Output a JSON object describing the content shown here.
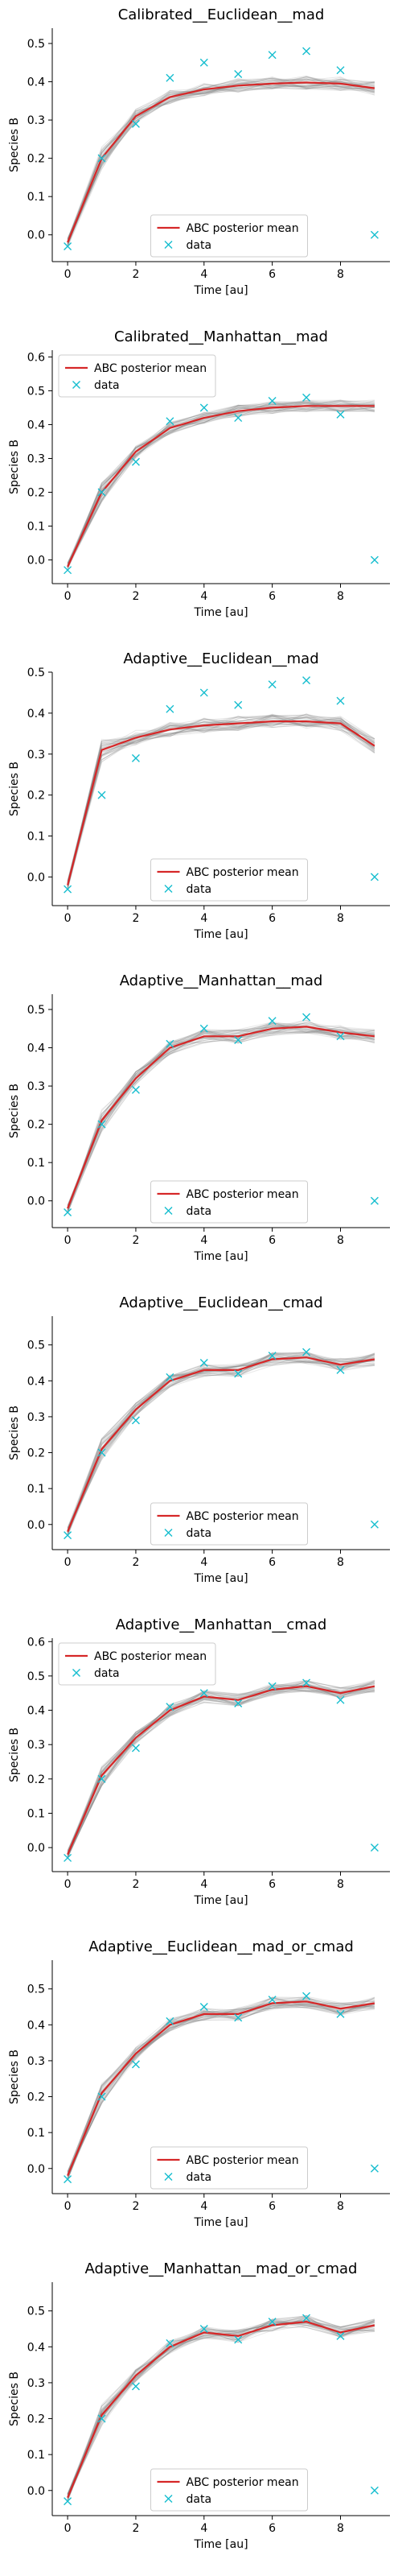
{
  "chart_data": [
    {
      "type": "line",
      "title": "Calibrated__Euclidean__mad",
      "xlabel": "Time [au]",
      "ylabel": "Species B",
      "xlim": [
        -0.45,
        9.45
      ],
      "ylim": [
        -0.07,
        0.54
      ],
      "xticks": [
        0,
        2,
        4,
        6,
        8
      ],
      "yticks": [
        0.0,
        0.1,
        0.2,
        0.3,
        0.4,
        0.5
      ],
      "legend_position": "lower-center",
      "series": [
        {
          "name": "ABC posterior mean",
          "color": "#d62728",
          "x": [
            0,
            1,
            2,
            3,
            4,
            5,
            6,
            7,
            8,
            9
          ],
          "y": [
            -0.02,
            0.2,
            0.31,
            0.36,
            0.38,
            0.39,
            0.395,
            0.398,
            0.395,
            0.383
          ]
        },
        {
          "name": "data",
          "color": "#17becf",
          "marker": "x",
          "x": [
            0,
            1,
            2,
            3,
            4,
            5,
            6,
            7,
            8,
            9
          ],
          "y": [
            -0.03,
            0.2,
            0.29,
            0.41,
            0.45,
            0.42,
            0.47,
            0.48,
            0.43,
            0.0
          ]
        }
      ]
    },
    {
      "type": "line",
      "title": "Calibrated__Manhattan__mad",
      "xlabel": "Time [au]",
      "ylabel": "Species B",
      "xlim": [
        -0.45,
        9.45
      ],
      "ylim": [
        -0.07,
        0.62
      ],
      "xticks": [
        0,
        2,
        4,
        6,
        8
      ],
      "yticks": [
        0.0,
        0.1,
        0.2,
        0.3,
        0.4,
        0.5,
        0.6
      ],
      "legend_position": "upper-left",
      "series": [
        {
          "name": "ABC posterior mean",
          "color": "#d62728",
          "x": [
            0,
            1,
            2,
            3,
            4,
            5,
            6,
            7,
            8,
            9
          ],
          "y": [
            -0.02,
            0.2,
            0.32,
            0.39,
            0.42,
            0.44,
            0.45,
            0.455,
            0.455,
            0.455
          ]
        },
        {
          "name": "data",
          "color": "#17becf",
          "marker": "x",
          "x": [
            0,
            1,
            2,
            3,
            4,
            5,
            6,
            7,
            8,
            9
          ],
          "y": [
            -0.03,
            0.2,
            0.29,
            0.41,
            0.45,
            0.42,
            0.47,
            0.48,
            0.43,
            0.0
          ]
        }
      ]
    },
    {
      "type": "line",
      "title": "Adaptive__Euclidean__mad",
      "xlabel": "Time [au]",
      "ylabel": "Species B",
      "xlim": [
        -0.45,
        9.45
      ],
      "ylim": [
        -0.07,
        0.5
      ],
      "xticks": [
        0,
        2,
        4,
        6,
        8
      ],
      "yticks": [
        0.0,
        0.1,
        0.2,
        0.3,
        0.4,
        0.5
      ],
      "legend_position": "lower-center",
      "series": [
        {
          "name": "ABC posterior mean",
          "color": "#d62728",
          "x": [
            0,
            1,
            2,
            3,
            4,
            5,
            6,
            7,
            8,
            9
          ],
          "y": [
            -0.02,
            0.31,
            0.34,
            0.36,
            0.37,
            0.375,
            0.38,
            0.38,
            0.375,
            0.32
          ]
        },
        {
          "name": "data",
          "color": "#17becf",
          "marker": "x",
          "x": [
            0,
            1,
            2,
            3,
            4,
            5,
            6,
            7,
            8,
            9
          ],
          "y": [
            -0.03,
            0.2,
            0.29,
            0.41,
            0.45,
            0.42,
            0.47,
            0.48,
            0.43,
            0.0
          ]
        }
      ]
    },
    {
      "type": "line",
      "title": "Adaptive__Manhattan__mad",
      "xlabel": "Time [au]",
      "ylabel": "Species B",
      "xlim": [
        -0.45,
        9.45
      ],
      "ylim": [
        -0.07,
        0.54
      ],
      "xticks": [
        0,
        2,
        4,
        6,
        8
      ],
      "yticks": [
        0.0,
        0.1,
        0.2,
        0.3,
        0.4,
        0.5
      ],
      "legend_position": "lower-center",
      "series": [
        {
          "name": "ABC posterior mean",
          "color": "#d62728",
          "x": [
            0,
            1,
            2,
            3,
            4,
            5,
            6,
            7,
            8,
            9
          ],
          "y": [
            -0.02,
            0.21,
            0.32,
            0.4,
            0.43,
            0.43,
            0.45,
            0.455,
            0.44,
            0.43
          ]
        },
        {
          "name": "data",
          "color": "#17becf",
          "marker": "x",
          "x": [
            0,
            1,
            2,
            3,
            4,
            5,
            6,
            7,
            8,
            9
          ],
          "y": [
            -0.03,
            0.2,
            0.29,
            0.41,
            0.45,
            0.42,
            0.47,
            0.48,
            0.43,
            0.0
          ]
        }
      ]
    },
    {
      "type": "line",
      "title": "Adaptive__Euclidean__cmad",
      "xlabel": "Time [au]",
      "ylabel": "Species B",
      "xlim": [
        -0.45,
        9.45
      ],
      "ylim": [
        -0.07,
        0.58
      ],
      "xticks": [
        0,
        2,
        4,
        6,
        8
      ],
      "yticks": [
        0.0,
        0.1,
        0.2,
        0.3,
        0.4,
        0.5
      ],
      "legend_position": "lower-center",
      "series": [
        {
          "name": "ABC posterior mean",
          "color": "#d62728",
          "x": [
            0,
            1,
            2,
            3,
            4,
            5,
            6,
            7,
            8,
            9
          ],
          "y": [
            -0.02,
            0.21,
            0.32,
            0.4,
            0.43,
            0.43,
            0.46,
            0.465,
            0.445,
            0.46
          ]
        },
        {
          "name": "data",
          "color": "#17becf",
          "marker": "x",
          "x": [
            0,
            1,
            2,
            3,
            4,
            5,
            6,
            7,
            8,
            9
          ],
          "y": [
            -0.03,
            0.2,
            0.29,
            0.41,
            0.45,
            0.42,
            0.47,
            0.48,
            0.43,
            0.0
          ]
        }
      ]
    },
    {
      "type": "line",
      "title": "Adaptive__Manhattan__cmad",
      "xlabel": "Time [au]",
      "ylabel": "Species B",
      "xlim": [
        -0.45,
        9.45
      ],
      "ylim": [
        -0.07,
        0.61
      ],
      "xticks": [
        0,
        2,
        4,
        6,
        8
      ],
      "yticks": [
        0.0,
        0.1,
        0.2,
        0.3,
        0.4,
        0.5,
        0.6
      ],
      "legend_position": "upper-left",
      "series": [
        {
          "name": "ABC posterior mean",
          "color": "#d62728",
          "x": [
            0,
            1,
            2,
            3,
            4,
            5,
            6,
            7,
            8,
            9
          ],
          "y": [
            -0.02,
            0.21,
            0.32,
            0.4,
            0.44,
            0.43,
            0.46,
            0.47,
            0.45,
            0.47
          ]
        },
        {
          "name": "data",
          "color": "#17becf",
          "marker": "x",
          "x": [
            0,
            1,
            2,
            3,
            4,
            5,
            6,
            7,
            8,
            9
          ],
          "y": [
            -0.03,
            0.2,
            0.29,
            0.41,
            0.45,
            0.42,
            0.47,
            0.48,
            0.43,
            0.0
          ]
        }
      ]
    },
    {
      "type": "line",
      "title": "Adaptive__Euclidean__mad_or_cmad",
      "xlabel": "Time [au]",
      "ylabel": "Species B",
      "xlim": [
        -0.45,
        9.45
      ],
      "ylim": [
        -0.07,
        0.58
      ],
      "xticks": [
        0,
        2,
        4,
        6,
        8
      ],
      "yticks": [
        0.0,
        0.1,
        0.2,
        0.3,
        0.4,
        0.5
      ],
      "legend_position": "lower-center",
      "series": [
        {
          "name": "ABC posterior mean",
          "color": "#d62728",
          "x": [
            0,
            1,
            2,
            3,
            4,
            5,
            6,
            7,
            8,
            9
          ],
          "y": [
            -0.02,
            0.21,
            0.32,
            0.4,
            0.43,
            0.43,
            0.46,
            0.465,
            0.445,
            0.46
          ]
        },
        {
          "name": "data",
          "color": "#17becf",
          "marker": "x",
          "x": [
            0,
            1,
            2,
            3,
            4,
            5,
            6,
            7,
            8,
            9
          ],
          "y": [
            -0.03,
            0.2,
            0.29,
            0.41,
            0.45,
            0.42,
            0.47,
            0.48,
            0.43,
            0.0
          ]
        }
      ]
    },
    {
      "type": "line",
      "title": "Adaptive__Manhattan__mad_or_cmad",
      "xlabel": "Time [au]",
      "ylabel": "Species B",
      "xlim": [
        -0.45,
        9.45
      ],
      "ylim": [
        -0.07,
        0.58
      ],
      "xticks": [
        0,
        2,
        4,
        6,
        8
      ],
      "yticks": [
        0.0,
        0.1,
        0.2,
        0.3,
        0.4,
        0.5
      ],
      "legend_position": "lower-center",
      "series": [
        {
          "name": "ABC posterior mean",
          "color": "#d62728",
          "x": [
            0,
            1,
            2,
            3,
            4,
            5,
            6,
            7,
            8,
            9
          ],
          "y": [
            -0.02,
            0.21,
            0.32,
            0.4,
            0.44,
            0.43,
            0.46,
            0.47,
            0.44,
            0.46
          ]
        },
        {
          "name": "data",
          "color": "#17becf",
          "marker": "x",
          "x": [
            0,
            1,
            2,
            3,
            4,
            5,
            6,
            7,
            8,
            9
          ],
          "y": [
            -0.03,
            0.2,
            0.29,
            0.41,
            0.45,
            0.42,
            0.47,
            0.48,
            0.43,
            0.0
          ]
        }
      ]
    }
  ]
}
